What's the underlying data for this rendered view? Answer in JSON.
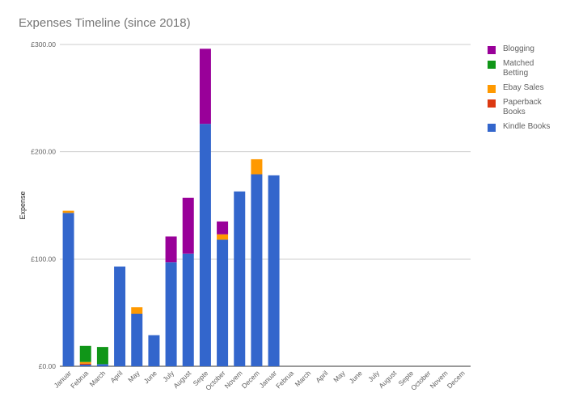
{
  "chart_data": {
    "type": "bar",
    "stacked": true,
    "title": "Expenses Timeline (since 2018)",
    "xlabel": "",
    "ylabel": "Expense",
    "ylim": [
      0,
      300
    ],
    "yticks": [
      0,
      100,
      200,
      300
    ],
    "ytick_labels": [
      "£0.00",
      "£100.00",
      "£200.00",
      "£300.00"
    ],
    "grid": true,
    "legend_position": "right",
    "categories": [
      "Januar",
      "Februa",
      "March",
      "April",
      "May",
      "June",
      "July",
      "August",
      "Septe",
      "October",
      "Novem",
      "Decem",
      "Januar",
      "Februa",
      "March",
      "April",
      "May",
      "June",
      "July",
      "August",
      "Septe",
      "October",
      "Novem",
      "Decem"
    ],
    "series": [
      {
        "name": "Kindle Books",
        "color": "#3366cc",
        "values": [
          143,
          1.5,
          2,
          93,
          49,
          29,
          97,
          105,
          226,
          118,
          163,
          179,
          178,
          0,
          0,
          0,
          0,
          0,
          0,
          0,
          0,
          0,
          0,
          0
        ]
      },
      {
        "name": "Paperback Books",
        "color": "#dc3912",
        "values": [
          0,
          1,
          0,
          0,
          0,
          0,
          0,
          0,
          0,
          0,
          0,
          0,
          0,
          0,
          0,
          0,
          0,
          0,
          0,
          0,
          0,
          0,
          0,
          0
        ]
      },
      {
        "name": "Ebay Sales",
        "color": "#ff9900",
        "values": [
          2,
          1.5,
          0,
          0,
          6,
          0,
          0,
          0,
          0,
          5,
          0,
          14,
          0,
          0,
          0,
          0,
          0,
          0,
          0,
          0,
          0,
          0,
          0,
          0
        ]
      },
      {
        "name": "Matched Betting",
        "color": "#109618",
        "values": [
          0,
          15,
          16,
          0,
          0,
          0,
          0,
          0,
          0,
          0,
          0,
          0,
          0,
          0,
          0,
          0,
          0,
          0,
          0,
          0,
          0,
          0,
          0,
          0
        ]
      },
      {
        "name": "Blogging",
        "color": "#990099",
        "values": [
          0,
          0,
          0,
          0,
          0,
          0,
          24,
          52,
          70,
          12,
          0,
          0,
          0,
          0,
          0,
          0,
          0,
          0,
          0,
          0,
          0,
          0,
          0,
          0
        ]
      }
    ],
    "legend_order": [
      "Blogging",
      "Matched Betting",
      "Ebay Sales",
      "Paperback Books",
      "Kindle Books"
    ]
  }
}
